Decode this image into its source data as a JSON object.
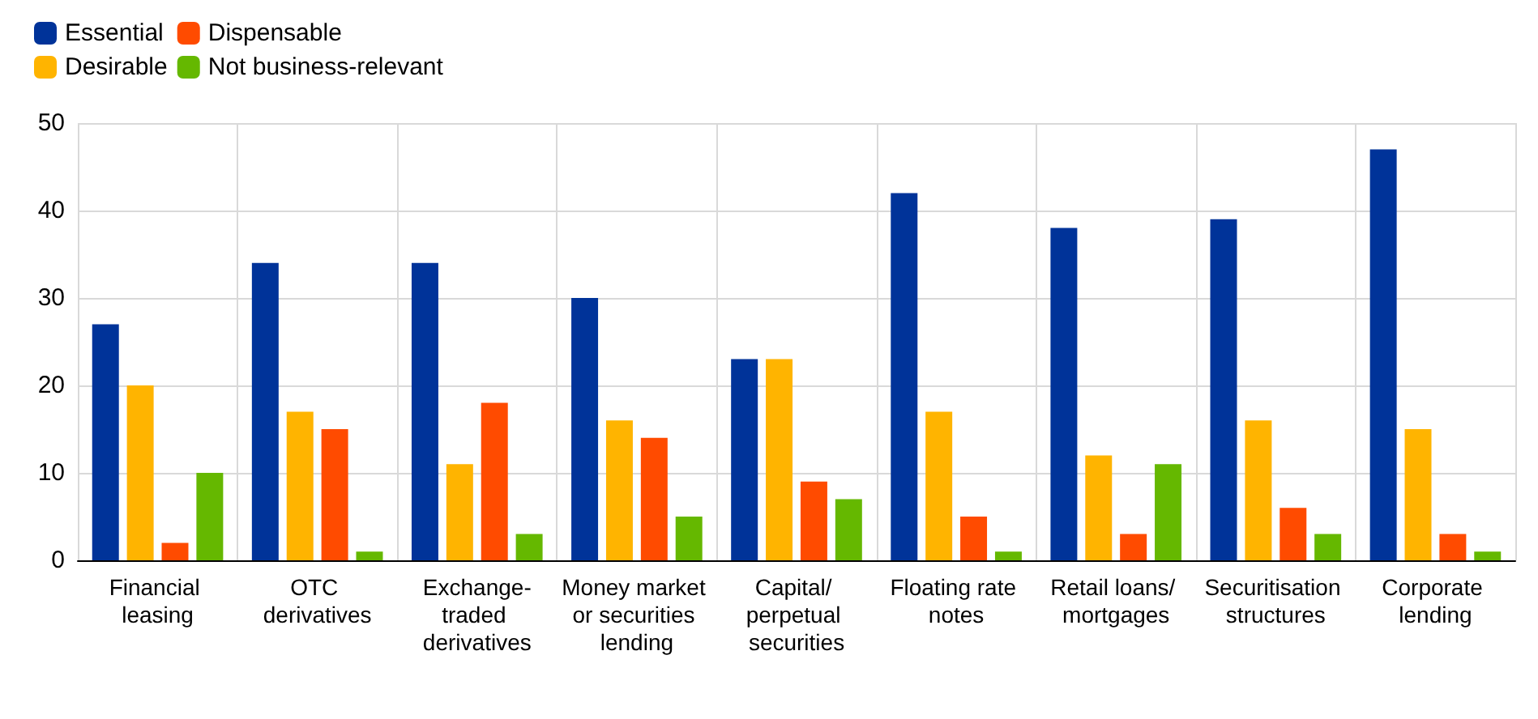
{
  "chart_data": {
    "type": "bar",
    "categories": [
      "Financial leasing",
      "OTC derivatives",
      "Exchange-traded derivatives",
      "Money market or securities lending",
      "Capital/ perpetual securities",
      "Floating rate notes",
      "Retail loans/ mortgages",
      "Securitisation structures",
      "Corporate lending"
    ],
    "series": [
      {
        "name": "Essential",
        "color": "#003399",
        "values": [
          27,
          34,
          34,
          30,
          23,
          42,
          38,
          39,
          47
        ]
      },
      {
        "name": "Desirable",
        "color": "#ffb400",
        "values": [
          20,
          17,
          11,
          16,
          23,
          17,
          12,
          16,
          15
        ]
      },
      {
        "name": "Dispensable",
        "color": "#ff4b00",
        "values": [
          2,
          15,
          18,
          14,
          9,
          5,
          3,
          6,
          3
        ]
      },
      {
        "name": "Not business-relevant",
        "color": "#65b800",
        "values": [
          10,
          1,
          3,
          5,
          7,
          1,
          11,
          3,
          1
        ]
      }
    ],
    "ylim": [
      0,
      50
    ],
    "yticks": [
      0,
      10,
      20,
      30,
      40,
      50
    ],
    "grid": true,
    "legend": "top left"
  }
}
